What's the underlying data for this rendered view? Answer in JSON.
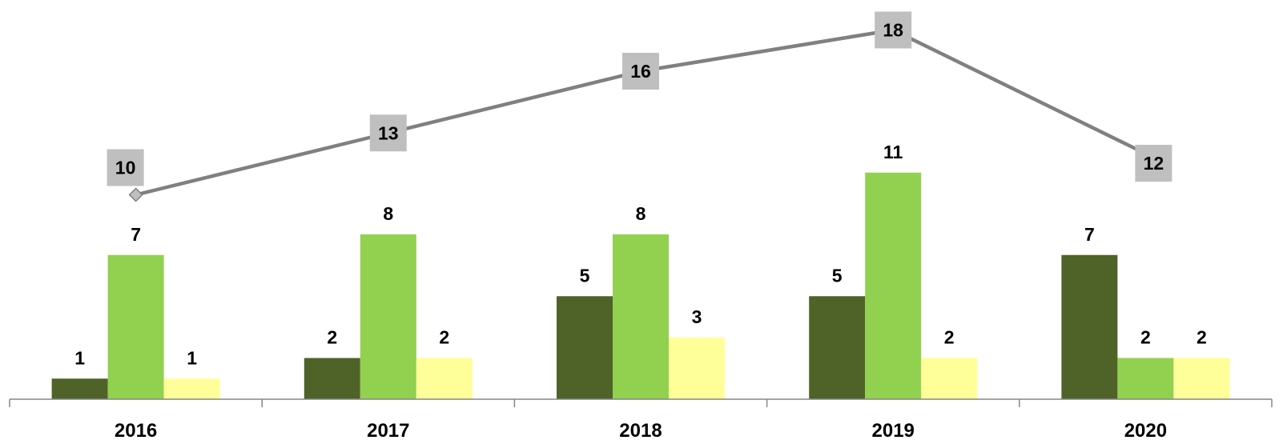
{
  "chart_data": {
    "type": "bar",
    "title": "",
    "xlabel": "",
    "ylabel": "",
    "categories": [
      "2016",
      "2017",
      "2018",
      "2019",
      "2020"
    ],
    "series": [
      {
        "values": [
          1,
          2,
          5,
          5,
          7
        ],
        "color": "#4f6228"
      },
      {
        "values": [
          7,
          8,
          8,
          11,
          2
        ],
        "color": "#92d050"
      },
      {
        "values": [
          1,
          2,
          3,
          2,
          2
        ],
        "color": "#ffff99"
      }
    ],
    "line": {
      "type": "line",
      "values": [
        10,
        13,
        16,
        18,
        12
      ],
      "color": "#808080",
      "label_box_color": "#bfbfbf"
    },
    "ylim": [
      0,
      19
    ],
    "grid": false,
    "legend": "none"
  }
}
